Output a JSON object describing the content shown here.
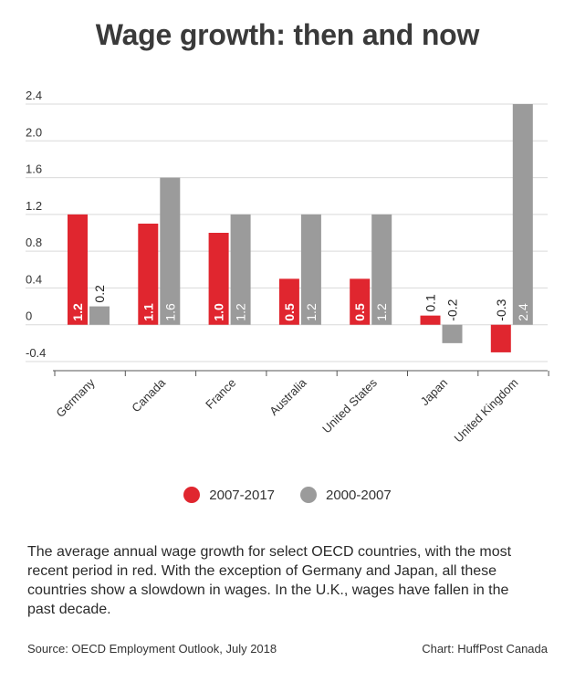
{
  "header": {
    "title": "Wage growth: then and now"
  },
  "colors": {
    "series_recent": "#e0262f",
    "series_earlier": "#9b9b9b",
    "grid": "#d9d9d9",
    "axis_text": "#333333"
  },
  "legend": {
    "items": [
      {
        "label": "2007-2017",
        "color": "#e0262f"
      },
      {
        "label": "2000-2007",
        "color": "#9b9b9b"
      }
    ]
  },
  "chart_data": {
    "type": "bar",
    "categories": [
      "Germany",
      "Canada",
      "France",
      "Australia",
      "United States",
      "Japan",
      "United Kingdom"
    ],
    "series": [
      {
        "name": "2007-2017",
        "color": "#e0262f",
        "values": [
          1.2,
          1.1,
          1.0,
          0.5,
          0.5,
          0.1,
          -0.3
        ],
        "labels": [
          "1.2",
          "1.1",
          "1.0",
          "0.5",
          "0.5",
          "0.1",
          "-0.3"
        ]
      },
      {
        "name": "2000-2007",
        "color": "#9b9b9b",
        "values": [
          0.2,
          1.6,
          1.2,
          1.2,
          1.2,
          -0.2,
          2.4
        ],
        "labels": [
          "0.2",
          "1.6",
          "1.2",
          "1.2",
          "1.2",
          "-0.2",
          "2.4"
        ]
      }
    ],
    "yticks": [
      2.4,
      2.0,
      1.6,
      1.2,
      0.8,
      0.4,
      0,
      -0.4
    ],
    "ytick_labels": [
      "2.4",
      "2.0",
      "1.6",
      "1.2",
      "0.8",
      "0.4",
      "0",
      "-0.4"
    ],
    "ylim": [
      -0.4,
      2.4
    ],
    "grid": true,
    "legend_position": "bottom"
  },
  "footer": {
    "description": "The average annual wage growth for select OECD countries, with the most recent period in red. With the exception of Germany and Japan, all these countries show a slowdown in wages. In the U.K., wages have fallen in the past decade.",
    "source": "Source: OECD Employment Outlook, July 2018",
    "credit": "Chart: HuffPost Canada"
  }
}
